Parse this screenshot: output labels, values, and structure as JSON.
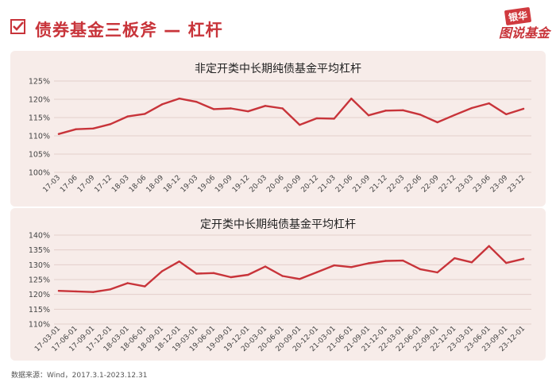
{
  "header": {
    "title": "债券基金三板斧 — 杠杆",
    "brand_top": "银华",
    "brand_bottom": "图说基金"
  },
  "colors": {
    "accent": "#c8343a",
    "line": "#c8343a",
    "panel_bg": "#f7ece9",
    "grid": "#e3cfca"
  },
  "footer": {
    "source": "数据来源：Wind，2017.3.1-2023.12.31"
  },
  "chart_data": [
    {
      "type": "line",
      "title": "非定开类中长期纯债基金平均杠杆",
      "x": [
        "17-03",
        "17-06",
        "17-09",
        "17-12",
        "18-03",
        "18-06",
        "18-09",
        "18-12",
        "19-03",
        "19-06",
        "19-09",
        "19-12",
        "20-03",
        "20-06",
        "20-09",
        "20-12",
        "21-03",
        "21-06",
        "21-09",
        "21-12",
        "22-03",
        "22-06",
        "22-09",
        "22-12",
        "23-03",
        "23-06",
        "23-09",
        "23-12"
      ],
      "series": [
        {
          "values": [
            110.5,
            111.8,
            112.0,
            113.2,
            115.3,
            116.0,
            118.6,
            120.2,
            119.3,
            117.3,
            117.5,
            116.7,
            118.2,
            117.5,
            113.0,
            114.8,
            114.7,
            120.2,
            115.6,
            116.9,
            117.0,
            115.8,
            113.7,
            115.7,
            117.6,
            118.9,
            115.9,
            117.4
          ]
        }
      ],
      "yticks": [
        "125%",
        "120%",
        "115%",
        "110%",
        "105%",
        "100%"
      ],
      "ylim": [
        100,
        125
      ],
      "grid": true
    },
    {
      "type": "line",
      "title": "定开类中长期纯债基金平均杠杆",
      "x": [
        "17-03-01",
        "17-06-01",
        "17-09-01",
        "17-12-01",
        "18-03-01",
        "18-06-01",
        "18-09-01",
        "18-12-01",
        "19-03-01",
        "19-06-01",
        "19-09-01",
        "19-12-01",
        "20-03-01",
        "20-06-01",
        "20-09-01",
        "20-12-01",
        "21-03-01",
        "21-06-01",
        "21-09-01",
        "21-12-01",
        "22-03-01",
        "22-06-01",
        "22-09-01",
        "22-12-01",
        "23-03-01",
        "23-06-01",
        "23-09-01",
        "23-12-01"
      ],
      "series": [
        {
          "values": [
            121.2,
            121.0,
            120.8,
            121.7,
            123.8,
            122.7,
            127.8,
            131.1,
            127.0,
            127.2,
            125.8,
            126.6,
            129.4,
            126.2,
            125.2,
            127.5,
            129.8,
            129.2,
            130.5,
            131.3,
            131.4,
            128.5,
            127.4,
            132.2,
            130.8,
            136.3,
            130.6,
            132.0
          ]
        }
      ],
      "yticks": [
        "140%",
        "135%",
        "130%",
        "125%",
        "120%",
        "115%",
        "110%"
      ],
      "ylim": [
        110,
        140
      ],
      "grid": true
    }
  ]
}
